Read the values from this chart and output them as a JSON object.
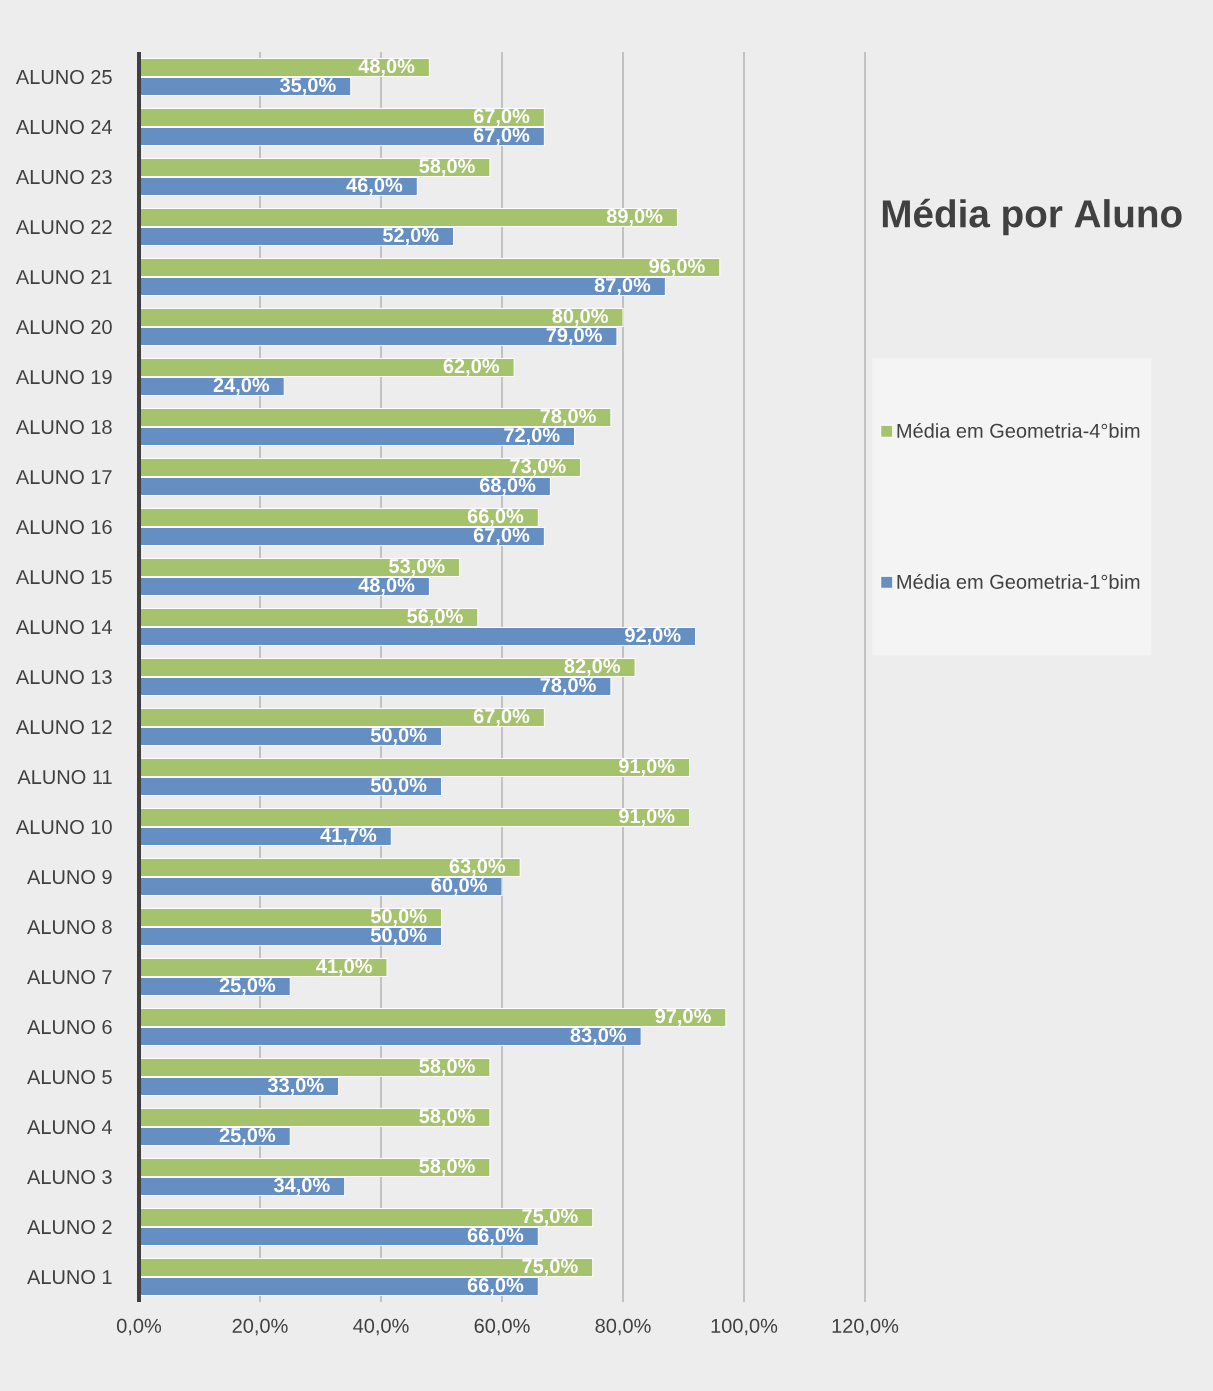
{
  "chart_data": {
    "type": "bar",
    "orientation": "horizontal",
    "title": "Média por Aluno",
    "categories": [
      "ALUNO 25",
      "ALUNO 24",
      "ALUNO 23",
      "ALUNO 22",
      "ALUNO 21",
      "ALUNO 20",
      "ALUNO 19",
      "ALUNO 18",
      "ALUNO 17",
      "ALUNO 16",
      "ALUNO 15",
      "ALUNO 14",
      "ALUNO 13",
      "ALUNO 12",
      "ALUNO 11",
      "ALUNO 10",
      "ALUNO 9",
      "ALUNO 8",
      "ALUNO 7",
      "ALUNO 6",
      "ALUNO 5",
      "ALUNO 4",
      "ALUNO 3",
      "ALUNO 2",
      "ALUNO 1"
    ],
    "series": [
      {
        "name": "Média em Geometria-4°bim",
        "color": "#a5c26c",
        "values": [
          48,
          67,
          58,
          89,
          96,
          80,
          62,
          78,
          73,
          66,
          53,
          56,
          82,
          67,
          91,
          91,
          63,
          50,
          41,
          97,
          58,
          58,
          58,
          75,
          75
        ],
        "value_labels": [
          "48,0%",
          "67,0%",
          "58,0%",
          "89,0%",
          "96,0%",
          "80,0%",
          "62,0%",
          "78,0%",
          "73,0%",
          "66,0%",
          "53,0%",
          "56,0%",
          "82,0%",
          "67,0%",
          "91,0%",
          "91,0%",
          "63,0%",
          "50,0%",
          "41,0%",
          "97,0%",
          "58,0%",
          "58,0%",
          "58,0%",
          "75,0%",
          "75,0%"
        ]
      },
      {
        "name": "Média em Geometria-1°bim",
        "color": "#658fc3",
        "values": [
          35,
          67,
          46,
          52,
          87,
          79,
          24,
          72,
          68,
          67,
          48,
          92,
          78,
          50,
          50,
          41.7,
          60,
          50,
          25,
          83,
          33,
          25,
          34,
          66,
          66
        ],
        "value_labels": [
          "35,0%",
          "67,0%",
          "46,0%",
          "52,0%",
          "87,0%",
          "79,0%",
          "24,0%",
          "72,0%",
          "68,0%",
          "67,0%",
          "48,0%",
          "92,0%",
          "78,0%",
          "50,0%",
          "50,0%",
          "41,7%",
          "60,0%",
          "50,0%",
          "25,0%",
          "83,0%",
          "33,0%",
          "25,0%",
          "34,0%",
          "66,0%",
          "66,0%"
        ]
      }
    ],
    "xlim": [
      0,
      120
    ],
    "xticks": [
      {
        "value": 0,
        "label": "0,0%"
      },
      {
        "value": 20,
        "label": "20,0%"
      },
      {
        "value": 40,
        "label": "40,0%"
      },
      {
        "value": 60,
        "label": "60,0%"
      },
      {
        "value": 80,
        "label": "80,0%"
      },
      {
        "value": 100,
        "label": "100,0%"
      },
      {
        "value": 120,
        "label": "120,0%"
      }
    ],
    "grid": "x",
    "legend": "right"
  }
}
